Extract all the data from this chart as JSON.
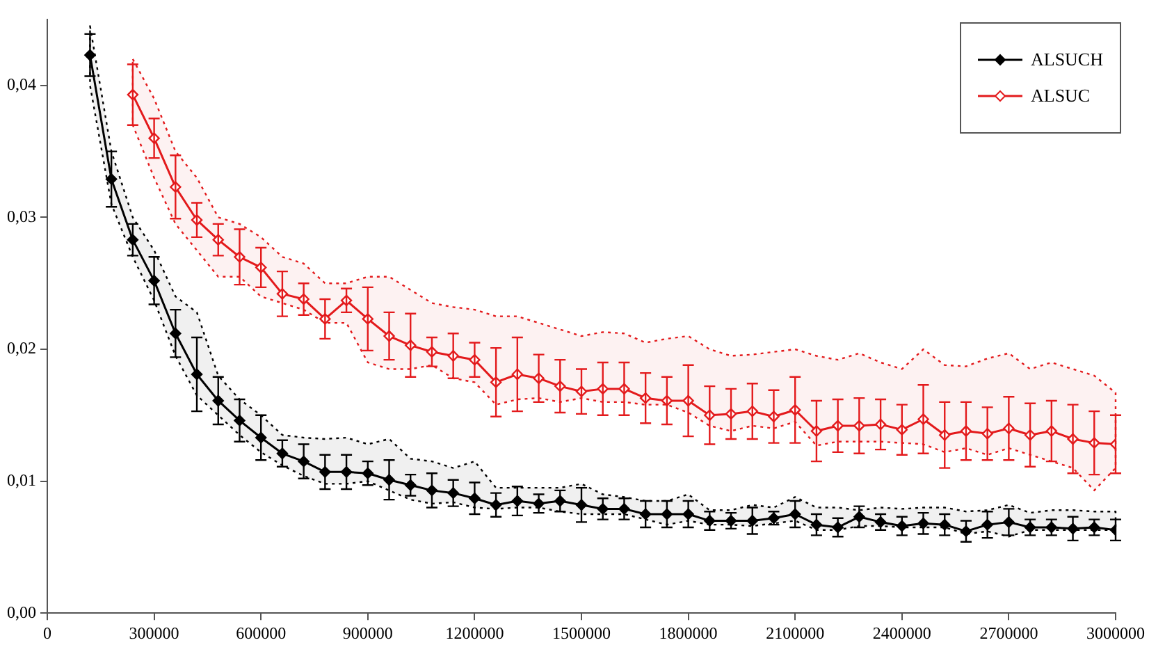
{
  "chart_data": {
    "type": "line",
    "x": [
      120000,
      180000,
      240000,
      300000,
      360000,
      420000,
      480000,
      540000,
      600000,
      660000,
      720000,
      780000,
      840000,
      900000,
      960000,
      1020000,
      1080000,
      1140000,
      1200000,
      1260000,
      1320000,
      1380000,
      1440000,
      1500000,
      1560000,
      1620000,
      1680000,
      1740000,
      1800000,
      1860000,
      1920000,
      1980000,
      2040000,
      2100000,
      2160000,
      2220000,
      2280000,
      2340000,
      2400000,
      2460000,
      2520000,
      2580000,
      2640000,
      2700000,
      2760000,
      2820000,
      2880000,
      2940000,
      3000000
    ],
    "xlim": [
      0,
      3000000
    ],
    "xticks": [
      0,
      300000,
      600000,
      900000,
      1200000,
      1500000,
      1800000,
      2100000,
      2400000,
      2700000,
      3000000
    ],
    "ylim": [
      0,
      0.045
    ],
    "yticks": [
      {
        "value": 0,
        "label": "0,00"
      },
      {
        "value": 0.01,
        "label": "0,01"
      },
      {
        "value": 0.02,
        "label": "0,02"
      },
      {
        "value": 0.03,
        "label": "0,03"
      },
      {
        "value": 0.04,
        "label": "0,04"
      }
    ],
    "grid": false,
    "legend": "top right",
    "marker": "diamond",
    "line_style": "solid",
    "series": [
      {
        "name": "ALSUCH",
        "color": "#000000",
        "values": [
          0.0423,
          0.0329,
          0.0283,
          0.0252,
          0.0212,
          0.0181,
          0.0161,
          0.0146,
          0.0133,
          0.0121,
          0.0115,
          0.0107,
          0.0107,
          0.0106,
          0.0101,
          0.0097,
          0.0093,
          0.0091,
          0.0087,
          0.0082,
          0.0085,
          0.0083,
          0.0085,
          0.0082,
          0.0079,
          0.0079,
          0.0075,
          0.0075,
          0.0075,
          0.007,
          0.007,
          0.007,
          0.0072,
          0.0075,
          0.0067,
          0.0065,
          0.0073,
          0.0069,
          0.0066,
          0.0068,
          0.0067,
          0.0062,
          0.0067,
          0.0069,
          0.0065,
          0.0065,
          0.0064,
          0.0065,
          0.0063
        ],
        "errors": [
          0.0016,
          0.0021,
          0.0012,
          0.0018,
          0.0018,
          0.0028,
          0.0018,
          0.0016,
          0.0017,
          0.001,
          0.0013,
          0.0013,
          0.0013,
          0.0009,
          0.0015,
          0.0008,
          0.0013,
          0.001,
          0.0012,
          0.0009,
          0.0011,
          0.0007,
          0.0008,
          0.0013,
          0.0008,
          0.0008,
          0.001,
          0.001,
          0.001,
          0.0007,
          0.0006,
          0.001,
          0.0005,
          0.001,
          0.0008,
          0.0007,
          0.0008,
          0.0006,
          0.0007,
          0.0008,
          0.0008,
          0.0008,
          0.001,
          0.001,
          0.0006,
          0.0006,
          0.0009,
          0.0006,
          0.0008
        ],
        "upper": [
          0.0445,
          0.035,
          0.03,
          0.0275,
          0.024,
          0.0228,
          0.018,
          0.0162,
          0.015,
          0.0135,
          0.0133,
          0.0132,
          0.0133,
          0.0128,
          0.0132,
          0.0117,
          0.0115,
          0.011,
          0.0115,
          0.0095,
          0.0095,
          0.0095,
          0.0095,
          0.0098,
          0.009,
          0.0088,
          0.0085,
          0.0085,
          0.009,
          0.0078,
          0.0078,
          0.0082,
          0.008,
          0.0088,
          0.008,
          0.008,
          0.0078,
          0.008,
          0.0079,
          0.008,
          0.008,
          0.0077,
          0.0078,
          0.0082,
          0.0076,
          0.0078,
          0.0078,
          0.0077,
          0.0077
        ],
        "lower": [
          0.04,
          0.031,
          0.027,
          0.0237,
          0.0195,
          0.0165,
          0.015,
          0.0135,
          0.0122,
          0.0112,
          0.0104,
          0.0098,
          0.0098,
          0.01,
          0.0093,
          0.0086,
          0.0083,
          0.0084,
          0.008,
          0.0079,
          0.008,
          0.008,
          0.0077,
          0.0075,
          0.0075,
          0.0075,
          0.0071,
          0.0067,
          0.007,
          0.0067,
          0.0067,
          0.0066,
          0.0068,
          0.007,
          0.0063,
          0.0063,
          0.0066,
          0.0066,
          0.0065,
          0.0065,
          0.0065,
          0.006,
          0.0062,
          0.0058,
          0.0063,
          0.0063,
          0.0063,
          0.0063,
          0.0063
        ]
      },
      {
        "name": "ALSUC",
        "color": "#e31a1c",
        "values": [
          null,
          null,
          0.0393,
          0.036,
          0.0323,
          0.0298,
          0.0283,
          0.027,
          0.0262,
          0.0242,
          0.0238,
          0.0223,
          0.0237,
          0.0223,
          0.021,
          0.0203,
          0.0198,
          0.0195,
          0.0192,
          0.0175,
          0.0181,
          0.0178,
          0.0172,
          0.0168,
          0.017,
          0.017,
          0.0163,
          0.0161,
          0.0161,
          0.015,
          0.0151,
          0.0153,
          0.0149,
          0.0154,
          0.0138,
          0.0142,
          0.0142,
          0.0143,
          0.0139,
          0.0147,
          0.0135,
          0.0138,
          0.0136,
          0.014,
          0.0135,
          0.0138,
          0.0132,
          0.0129,
          0.0128
        ],
        "errors": [
          null,
          null,
          0.0023,
          0.0015,
          0.0024,
          0.0013,
          0.0012,
          0.0021,
          0.0015,
          0.0017,
          0.0012,
          0.0015,
          0.0009,
          0.0024,
          0.0018,
          0.0024,
          0.0011,
          0.0017,
          0.0013,
          0.0026,
          0.0028,
          0.0018,
          0.002,
          0.0017,
          0.002,
          0.002,
          0.0019,
          0.0018,
          0.0027,
          0.0022,
          0.0019,
          0.0021,
          0.002,
          0.0025,
          0.0023,
          0.002,
          0.0021,
          0.0019,
          0.0019,
          0.0026,
          0.0025,
          0.0022,
          0.002,
          0.0024,
          0.0024,
          0.0023,
          0.0026,
          0.0024,
          0.0022
        ],
        "upper": [
          null,
          null,
          0.042,
          0.039,
          0.035,
          0.033,
          0.03,
          0.0295,
          0.0285,
          0.027,
          0.0265,
          0.025,
          0.025,
          0.0255,
          0.0255,
          0.0245,
          0.0235,
          0.0232,
          0.023,
          0.0225,
          0.0225,
          0.022,
          0.0215,
          0.021,
          0.0213,
          0.0212,
          0.0205,
          0.0208,
          0.021,
          0.02,
          0.0195,
          0.0196,
          0.0198,
          0.02,
          0.0195,
          0.0192,
          0.0197,
          0.019,
          0.0185,
          0.02,
          0.0188,
          0.0187,
          0.0193,
          0.0197,
          0.0185,
          0.019,
          0.0185,
          0.018,
          0.0167
        ],
        "lower": [
          null,
          null,
          0.037,
          0.033,
          0.0295,
          0.0275,
          0.0255,
          0.0255,
          0.024,
          0.0235,
          0.023,
          0.022,
          0.022,
          0.019,
          0.0185,
          0.0185,
          0.0188,
          0.0178,
          0.0175,
          0.0158,
          0.0162,
          0.0163,
          0.016,
          0.0163,
          0.016,
          0.016,
          0.0158,
          0.0158,
          0.0152,
          0.0142,
          0.0138,
          0.0142,
          0.014,
          0.0145,
          0.0127,
          0.013,
          0.013,
          0.013,
          0.0129,
          0.0128,
          0.0122,
          0.0125,
          0.012,
          0.0125,
          0.012,
          0.0115,
          0.011,
          0.0093,
          0.011
        ]
      }
    ]
  }
}
